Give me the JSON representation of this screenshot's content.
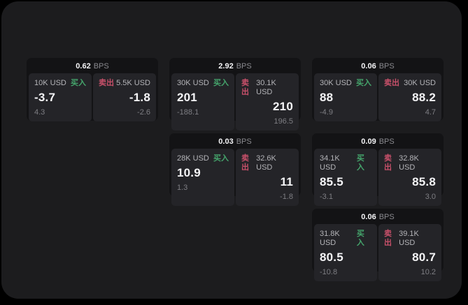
{
  "labels": {
    "bps": "BPS",
    "buy": "买入",
    "sell": "卖出"
  },
  "colors": {
    "page_bg": "#1c1c1e",
    "card_bg": "#131315",
    "panel_bg": "#242428",
    "buy_green": "#45a56c",
    "sell_rose": "#c8506a",
    "value_white": "#f5f5f7",
    "muted_gray": "#7e7e83"
  },
  "cards": [
    {
      "bps": "0.62",
      "buy": {
        "amount": "10K USD",
        "value": "-3.7",
        "sub": "4.3"
      },
      "sell": {
        "amount": "5.5K USD",
        "value": "-1.8",
        "sub": "-2.6"
      }
    },
    {
      "bps": "2.92",
      "buy": {
        "amount": "30K USD",
        "value": "201",
        "sub": "-188.1"
      },
      "sell": {
        "amount": "30.1K USD",
        "value": "210",
        "sub": "196.5"
      }
    },
    {
      "bps": "0.06",
      "buy": {
        "amount": "30K USD",
        "value": "88",
        "sub": "-4.9"
      },
      "sell": {
        "amount": "30K USD",
        "value": "88.2",
        "sub": "4.7"
      }
    },
    {
      "bps": "0.03",
      "buy": {
        "amount": "28K USD",
        "value": "10.9",
        "sub": "1.3"
      },
      "sell": {
        "amount": "32.6K USD",
        "value": "11",
        "sub": "-1.8"
      }
    },
    {
      "bps": "0.09",
      "buy": {
        "amount": "34.1K USD",
        "value": "85.5",
        "sub": "-3.1"
      },
      "sell": {
        "amount": "32.8K USD",
        "value": "85.8",
        "sub": "3.0"
      }
    },
    {
      "bps": "0.06",
      "buy": {
        "amount": "31.8K USD",
        "value": "80.5",
        "sub": "-10.8"
      },
      "sell": {
        "amount": "39.1K USD",
        "value": "80.7",
        "sub": "10.2"
      }
    }
  ]
}
